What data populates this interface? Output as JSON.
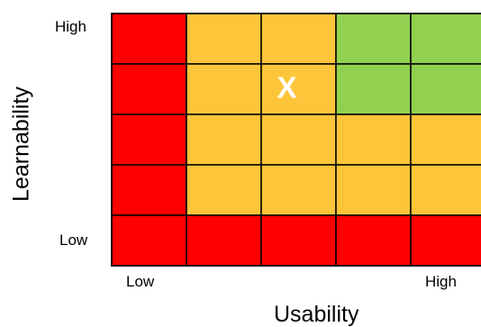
{
  "chart_data": {
    "type": "heatmap",
    "title": "",
    "xlabel": "Usability",
    "ylabel": "Learnability",
    "x_tick_labels": {
      "low": "Low",
      "high": "High"
    },
    "y_tick_labels": {
      "low": "Low",
      "high": "High"
    },
    "columns": 5,
    "rows": 5,
    "cells": [
      [
        "red",
        "yellow",
        "yellow",
        "green",
        "green"
      ],
      [
        "red",
        "yellow",
        "yellow",
        "green",
        "green"
      ],
      [
        "red",
        "yellow",
        "yellow",
        "yellow",
        "yellow"
      ],
      [
        "red",
        "yellow",
        "yellow",
        "yellow",
        "yellow"
      ],
      [
        "red",
        "red",
        "red",
        "red",
        "red"
      ]
    ],
    "colors": {
      "red": "#fe0000",
      "yellow": "#fdc53a",
      "green": "#92d050",
      "grid_line": "#000000",
      "marker": "#ffffff"
    },
    "marker": {
      "text": "X",
      "row": 1,
      "column": 2
    }
  }
}
